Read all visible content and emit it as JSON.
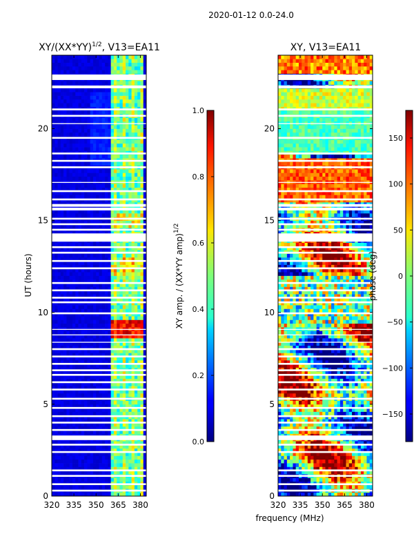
{
  "suptitle": "2020-01-12 0.0-24.0",
  "chart_data": [
    {
      "type": "heatmap",
      "title": "XY/(XX*YY)^1/2, V13=EA11",
      "title_base": "XY/(XX*YY)",
      "title_exp": "1/2",
      "title_tail": ", V13=EA11",
      "xlabel": "",
      "ylabel": "UT (hours)",
      "xlim": [
        320,
        384
      ],
      "ylim": [
        0,
        24
      ],
      "xticks": [
        320,
        335,
        350,
        365,
        380
      ],
      "yticks": [
        0,
        5,
        10,
        15,
        20
      ],
      "colormap": "jet",
      "colorbar": {
        "label_base": "XY amp. / (XX*YY amp)",
        "label_exp": "1/2",
        "range": [
          0.0,
          1.0
        ],
        "ticks": [
          "0.0",
          "0.2",
          "0.4",
          "0.6",
          "0.8",
          "1.0"
        ],
        "tick_values": [
          0.0,
          0.2,
          0.4,
          0.6,
          0.8,
          1.0
        ]
      },
      "description": "Normalized cross-correlation amplitude; mostly low (~0.05-0.15) below 360 MHz, elevated (0.3-0.6) at 361-382 MHz, peaking ~0.9 near 362-380 MHz around UT 8.5-9.5 h."
    },
    {
      "type": "heatmap",
      "title": "XY, V13=EA11",
      "xlabel": "frequency (MHz)",
      "ylabel": "",
      "xlim": [
        320,
        384
      ],
      "ylim": [
        0,
        24
      ],
      "xticks": [
        320,
        335,
        350,
        365,
        380
      ],
      "yticks": [
        0,
        5,
        10,
        15,
        20
      ],
      "colormap": "jet",
      "colorbar": {
        "label": "phase (deg)",
        "range": [
          -180,
          180
        ],
        "ticks": [
          "150",
          "100",
          "50",
          "0",
          "−50",
          "−100",
          "−150"
        ],
        "tick_values": [
          150,
          100,
          50,
          0,
          -50,
          -100,
          -150
        ]
      },
      "description": "Cross-correlation phase, rapidly varying noisy structure across all times and frequencies."
    }
  ],
  "flagged_time_bands_hours": [
    [
      22.65,
      22.95
    ],
    [
      22.2,
      22.35
    ],
    [
      21.0,
      21.1
    ],
    [
      20.65,
      20.75
    ],
    [
      20.25,
      20.3
    ],
    [
      19.45,
      19.55
    ],
    [
      18.6,
      18.7
    ],
    [
      18.2,
      18.3
    ],
    [
      17.85,
      17.95
    ],
    [
      17.05,
      17.1
    ],
    [
      16.55,
      16.65
    ],
    [
      16.1,
      16.2
    ],
    [
      15.75,
      15.9
    ],
    [
      15.55,
      15.7
    ],
    [
      15.05,
      15.15
    ],
    [
      14.75,
      14.85
    ],
    [
      14.45,
      14.55
    ],
    [
      13.85,
      14.3
    ],
    [
      13.5,
      13.6
    ],
    [
      13.2,
      13.3
    ],
    [
      12.75,
      12.85
    ],
    [
      12.35,
      12.45
    ],
    [
      11.55,
      11.65
    ],
    [
      11.15,
      11.25
    ],
    [
      10.75,
      10.85
    ],
    [
      10.5,
      10.6
    ],
    [
      9.9,
      10.0
    ],
    [
      9.05,
      9.1
    ],
    [
      8.75,
      8.8
    ],
    [
      8.35,
      8.4
    ],
    [
      7.95,
      8.05
    ],
    [
      7.55,
      7.65
    ],
    [
      7.15,
      7.25
    ],
    [
      6.8,
      6.9
    ],
    [
      6.55,
      6.65
    ],
    [
      6.15,
      6.25
    ],
    [
      5.75,
      5.85
    ],
    [
      5.25,
      5.35
    ],
    [
      4.75,
      4.85
    ],
    [
      4.3,
      4.4
    ],
    [
      3.95,
      4.05
    ],
    [
      3.55,
      3.65
    ],
    [
      3.05,
      3.3
    ],
    [
      2.75,
      2.85
    ],
    [
      2.35,
      2.45
    ],
    [
      1.35,
      1.45
    ],
    [
      1.05,
      1.15
    ],
    [
      0.6,
      0.7
    ],
    [
      0.25,
      0.35
    ]
  ]
}
